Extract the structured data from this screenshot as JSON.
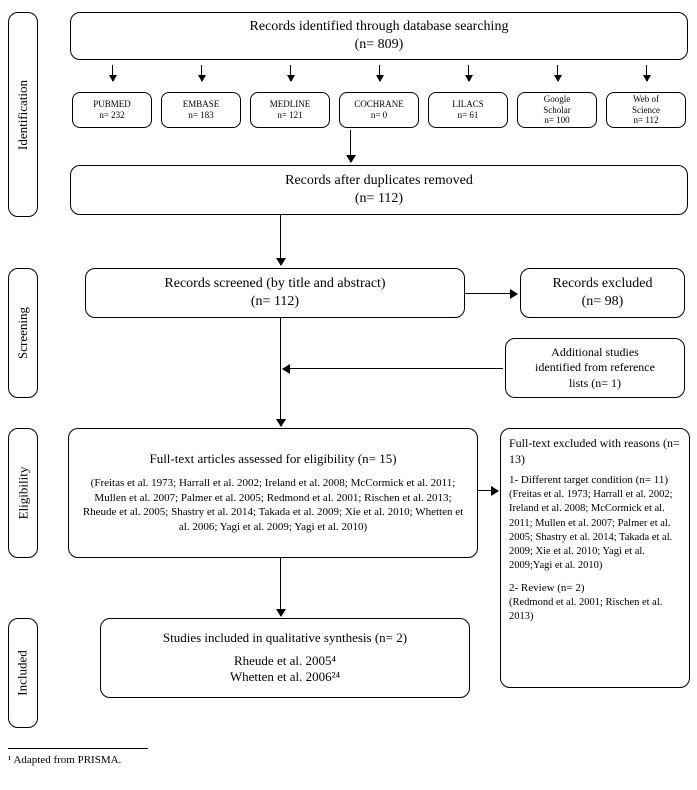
{
  "stages": {
    "identification": "Identification",
    "screening": "Screening",
    "eligibility": "Eligibility",
    "included": "Included"
  },
  "top_box": {
    "line1": "Records identified through database searching",
    "line2": "(n= 809)"
  },
  "databases": [
    {
      "name": "PUBMED",
      "n": "n= 232"
    },
    {
      "name": "EMBASE",
      "n": "n= 183"
    },
    {
      "name": "MEDLINE",
      "n": "n= 121"
    },
    {
      "name": "COCHRANE",
      "n": "n= 0"
    },
    {
      "name": "LILACS",
      "n": "n= 61"
    },
    {
      "name": "Google\nScholar",
      "n": "n= 100"
    },
    {
      "name": "Web of\nScience",
      "n": "n= 112"
    }
  ],
  "after_dup": {
    "line1": "Records after duplicates removed",
    "line2": "(n= 112)"
  },
  "screened": {
    "line1": "Records screened (by title and abstract)",
    "line2": "(n= 112)"
  },
  "excluded_screen": {
    "line1": "Records excluded",
    "line2": "(n= 98)"
  },
  "additional": {
    "line1": "Additional studies",
    "line2": "identified from reference",
    "line3": "lists (n= 1)"
  },
  "eligibility_box": {
    "title": "Full-text articles assessed for eligibility (n= 15)",
    "refs": "(Freitas et al. 1973; Harrall et al. 2002; Ireland et al. 2008; McCormick et al. 2011; Mullen et al. 2007; Palmer et al. 2005; Redmond et al. 2001; Rischen et al. 2013; Rheude et al. 2005; Shastry et al. 2014; Takada et al. 2009; Xie et al. 2010; Whetten et al. 2006; Yagi et al. 2009; Yagi et al. 2010)"
  },
  "excluded_full": {
    "head": "Full-text excluded with reasons (n= 13)",
    "r1_title": "1- Different target condition (n= 11)",
    "r1_refs": "(Freitas et al. 1973; Harrall et al. 2002; Ireland et al. 2008; McCormick et al. 2011; Mullen et al. 2007; Palmer et al. 2005; Shastry et al. 2014; Takada et al. 2009; Xie et al. 2010; Yagi et al. 2009;Yagi et al. 2010)",
    "r2_title": "2- Review (n= 2)",
    "r2_refs": "(Redmond et al. 2001; Rischen et al. 2013)"
  },
  "included_box": {
    "title": "Studies included in qualitative synthesis (n= 2)",
    "ref1": "Rheude et al. 2005⁴",
    "ref2": "Whetten et al. 2006²⁴"
  },
  "footnote": "¹ Adapted from PRISMA.",
  "colors": {
    "line": "#000000",
    "bg": "#ffffff"
  }
}
